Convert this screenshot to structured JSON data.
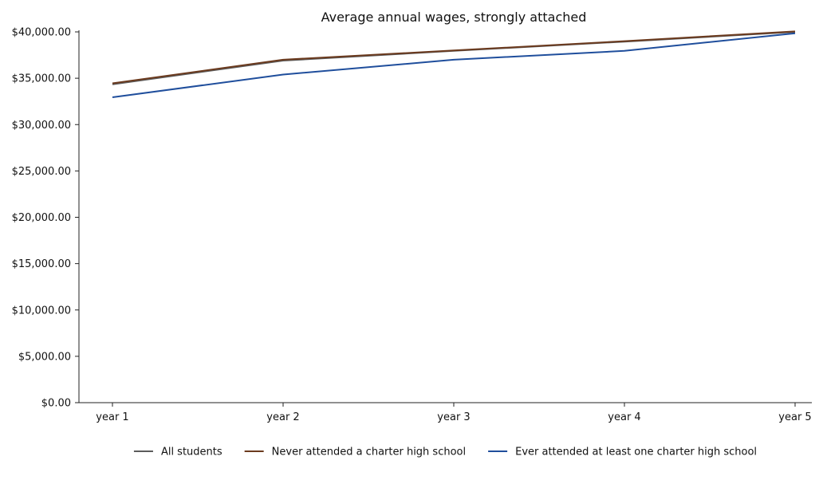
{
  "chart_data": {
    "type": "line",
    "title": "Average annual wages, strongly attached",
    "xlabel": "",
    "ylabel": "",
    "categories": [
      "year 1",
      "year 2",
      "year 3",
      "year 4",
      "year 5"
    ],
    "ylim": [
      0,
      40000
    ],
    "yticks": [
      0,
      5000,
      10000,
      15000,
      20000,
      25000,
      30000,
      35000,
      40000
    ],
    "ytick_labels": [
      "$0.00",
      "$5,000.00",
      "$10,000.00",
      "$15,000.00",
      "$20,000.00",
      "$25,000.00",
      "$30,000.00",
      "$35,000.00",
      "$40,000.00"
    ],
    "grid": false,
    "legend_position": "bottom",
    "series": [
      {
        "name": "All students",
        "color": "#5b5b5b",
        "values": [
          34350,
          36900,
          37950,
          38950,
          40000
        ]
      },
      {
        "name": "Never attended a charter high school",
        "color": "#6b3a1e",
        "values": [
          34450,
          37000,
          38000,
          39000,
          40050
        ]
      },
      {
        "name": "Ever attended at least one charter high school",
        "color": "#1f4e9c",
        "values": [
          32950,
          35400,
          37000,
          37950,
          39850
        ]
      }
    ]
  }
}
